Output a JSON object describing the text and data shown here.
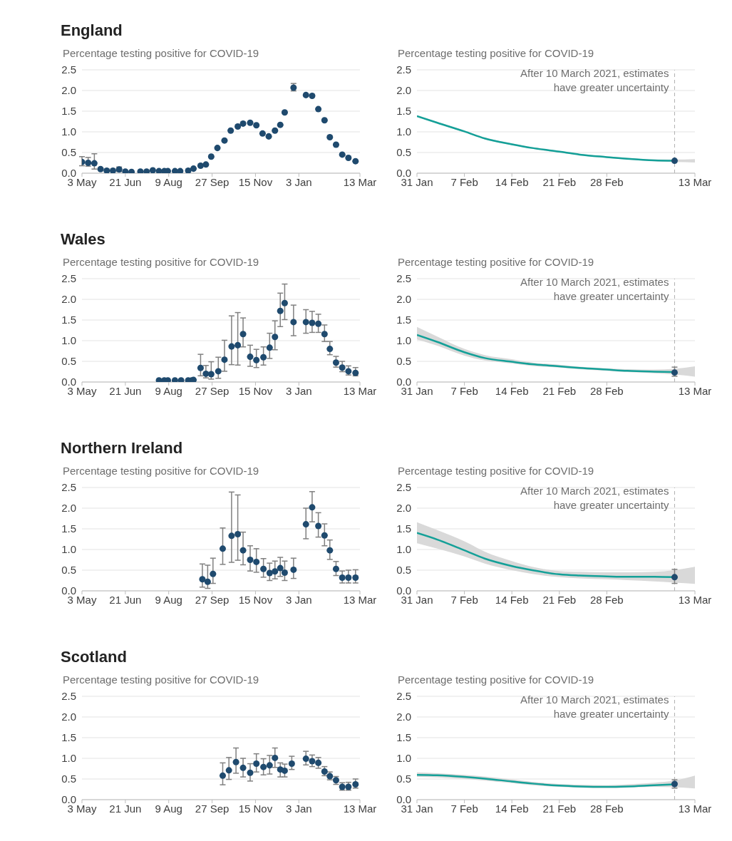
{
  "chart_data": [
    {
      "type": "scatter",
      "title": "England",
      "ylabel": "Percentage testing positive for COVID-19",
      "color": "#1f4a6e",
      "marker": "circle",
      "grid": "y",
      "x": [
        "2020-05-03",
        "2020-05-10",
        "2020-05-17",
        "2020-05-24",
        "2020-05-31",
        "2020-06-07",
        "2020-06-14",
        "2020-06-21",
        "2020-06-28",
        "2020-07-08",
        "2020-07-15",
        "2020-07-22",
        "2020-07-29",
        "2020-08-04",
        "2020-08-08",
        "2020-08-16",
        "2020-08-22",
        "2020-08-31",
        "2020-09-06",
        "2020-09-14",
        "2020-09-20",
        "2020-09-26",
        "2020-10-03",
        "2020-10-11",
        "2020-10-18",
        "2020-10-26",
        "2020-11-01",
        "2020-11-09",
        "2020-11-16",
        "2020-11-23",
        "2020-11-30",
        "2020-12-07",
        "2020-12-13",
        "2020-12-18",
        "2020-12-28",
        "2021-01-11",
        "2021-01-18",
        "2021-01-25",
        "2021-02-01",
        "2021-02-07",
        "2021-02-14",
        "2021-02-21",
        "2021-02-28",
        "2021-03-08"
      ],
      "values": [
        0.27,
        0.25,
        0.24,
        0.1,
        0.06,
        0.06,
        0.09,
        0.04,
        0.03,
        0.04,
        0.04,
        0.07,
        0.05,
        0.05,
        0.05,
        0.05,
        0.05,
        0.06,
        0.11,
        0.18,
        0.21,
        0.4,
        0.61,
        0.79,
        1.03,
        1.13,
        1.2,
        1.22,
        1.16,
        0.96,
        0.89,
        1.03,
        1.17,
        1.47,
        2.07,
        1.89,
        1.87,
        1.55,
        1.28,
        0.87,
        0.69,
        0.45,
        0.37,
        0.29
      ],
      "errors": [
        [
          0.18,
          0.4
        ],
        [
          0.17,
          0.38
        ],
        [
          0.1,
          0.47
        ],
        null,
        null,
        null,
        [
          0.04,
          0.15
        ],
        null,
        null,
        null,
        null,
        null,
        null,
        null,
        null,
        null,
        null,
        null,
        null,
        null,
        null,
        null,
        null,
        null,
        null,
        null,
        null,
        null,
        null,
        null,
        null,
        null,
        null,
        null,
        [
          1.99,
          2.17
        ],
        null,
        null,
        null,
        null,
        null,
        null,
        null,
        null,
        null
      ],
      "xlim": [
        "2020-05-03",
        "2021-03-13"
      ],
      "xticks": [
        {
          "value": "2020-05-03",
          "label": "3 May"
        },
        {
          "value": "2020-06-21",
          "label": "21 Jun"
        },
        {
          "value": "2020-08-09",
          "label": "9 Aug"
        },
        {
          "value": "2020-09-27",
          "label": "27 Sep"
        },
        {
          "value": "2020-11-15",
          "label": "15 Nov"
        },
        {
          "value": "2021-01-03",
          "label": "3 Jan"
        },
        {
          "value": "2021-03-13",
          "label": "13 Mar"
        }
      ],
      "ylim": [
        0,
        2.5
      ],
      "yticks": [
        {
          "value": 0,
          "label": "0.0"
        },
        0.5,
        {
          "value": 1,
          "label": "1.0"
        },
        1.5,
        {
          "value": 2,
          "label": "2.0"
        },
        2.5
      ]
    },
    {
      "type": "line",
      "ylabel": "Percentage testing positive for COVID-19",
      "grid": "y",
      "series": [
        {
          "type": "line",
          "color": "#14a098",
          "x": [
            "2021-01-31",
            "2021-02-03",
            "2021-02-07",
            "2021-02-10",
            "2021-02-14",
            "2021-02-17",
            "2021-02-21",
            "2021-02-24",
            "2021-02-28",
            "2021-03-03",
            "2021-03-07",
            "2021-03-10",
            "2021-03-13"
          ],
          "values": [
            1.38,
            1.22,
            1.01,
            0.84,
            0.7,
            0.61,
            0.52,
            0.45,
            0.39,
            0.35,
            0.31,
            0.3,
            null
          ],
          "lower": [
            1.36,
            1.2,
            0.99,
            0.82,
            0.68,
            0.59,
            0.5,
            0.43,
            0.37,
            0.33,
            0.29,
            0.27,
            0.26
          ],
          "upper": [
            1.4,
            1.24,
            1.03,
            0.86,
            0.72,
            0.63,
            0.54,
            0.47,
            0.41,
            0.37,
            0.33,
            0.33,
            0.34
          ]
        },
        {
          "type": "scatter",
          "color": "#1f4a6e",
          "x": [
            "2021-03-10"
          ],
          "values": [
            0.3
          ]
        }
      ],
      "xlim": [
        "2021-01-31",
        "2021-03-13"
      ],
      "xticks": [
        {
          "value": "2021-01-31",
          "label": "31 Jan"
        },
        {
          "value": "2021-02-07",
          "label": "7 Feb"
        },
        {
          "value": "2021-02-14",
          "label": "14 Feb"
        },
        {
          "value": "2021-02-21",
          "label": "21 Feb"
        },
        {
          "value": "2021-02-28",
          "label": "28 Feb"
        },
        {
          "value": "2021-03-13",
          "label": "13 Mar"
        }
      ],
      "ylim": [
        0,
        2.5
      ],
      "yticks": [
        {
          "value": 0,
          "label": "0.0"
        },
        0.5,
        {
          "value": 1,
          "label": "1.0"
        },
        1.5,
        {
          "value": 2,
          "label": "2.0"
        },
        2.5
      ],
      "ref_lines": [
        {
          "axis": "x",
          "value": "2021-03-10",
          "label": "After 10 March 2021, estimates have greater uncertainty",
          "line_style": "dashed"
        }
      ]
    },
    {
      "type": "scatter",
      "title": "Wales",
      "ylabel": "Percentage testing positive for COVID-19",
      "color": "#1f4a6e",
      "marker": "circle",
      "grid": "y",
      "x": [
        "2020-07-29",
        "2020-08-04",
        "2020-08-08",
        "2020-08-16",
        "2020-08-23",
        "2020-08-31",
        "2020-09-04",
        "2020-09-06",
        "2020-09-14",
        "2020-09-20",
        "2020-09-26",
        "2020-10-04",
        "2020-10-11",
        "2020-10-19",
        "2020-10-26",
        "2020-11-01",
        "2020-11-09",
        "2020-11-16",
        "2020-11-24",
        "2020-12-01",
        "2020-12-07",
        "2020-12-13",
        "2020-12-18",
        "2020-12-28",
        "2021-01-11",
        "2021-01-18",
        "2021-01-25",
        "2021-02-01",
        "2021-02-07",
        "2021-02-14",
        "2021-02-21",
        "2021-02-28",
        "2021-03-08"
      ],
      "values": [
        0.04,
        0.04,
        0.04,
        0.04,
        0.04,
        0.04,
        0.04,
        0.05,
        0.34,
        0.2,
        0.19,
        0.26,
        0.54,
        0.86,
        0.89,
        1.16,
        0.61,
        0.53,
        0.6,
        0.83,
        1.09,
        1.72,
        1.91,
        1.45,
        1.45,
        1.43,
        1.41,
        1.16,
        0.8,
        0.47,
        0.35,
        0.26,
        0.22
      ],
      "errors": [
        null,
        null,
        null,
        null,
        null,
        null,
        null,
        null,
        [
          0.15,
          0.67
        ],
        [
          0.1,
          0.4
        ],
        [
          0.07,
          0.49
        ],
        [
          0.09,
          0.6
        ],
        [
          0.26,
          1.01
        ],
        [
          0.42,
          1.6
        ],
        [
          0.41,
          1.68
        ],
        [
          0.85,
          1.55
        ],
        [
          0.38,
          0.89
        ],
        [
          0.35,
          0.79
        ],
        [
          0.41,
          0.85
        ],
        [
          0.57,
          1.18
        ],
        [
          0.78,
          1.48
        ],
        [
          1.34,
          2.15
        ],
        [
          1.51,
          2.37
        ],
        [
          1.12,
          1.86
        ],
        [
          1.18,
          1.75
        ],
        [
          1.2,
          1.71
        ],
        [
          1.2,
          1.64
        ],
        [
          0.98,
          1.38
        ],
        [
          0.66,
          0.98
        ],
        [
          0.36,
          0.62
        ],
        [
          0.25,
          0.5
        ],
        [
          0.17,
          0.39
        ],
        [
          0.15,
          0.35
        ]
      ],
      "xlim": [
        "2020-05-03",
        "2021-03-13"
      ],
      "xticks": [
        {
          "value": "2020-05-03",
          "label": "3 May"
        },
        {
          "value": "2020-06-21",
          "label": "21 Jun"
        },
        {
          "value": "2020-08-09",
          "label": "9 Aug"
        },
        {
          "value": "2020-09-27",
          "label": "27 Sep"
        },
        {
          "value": "2020-11-15",
          "label": "15 Nov"
        },
        {
          "value": "2021-01-03",
          "label": "3 Jan"
        },
        {
          "value": "2021-03-13",
          "label": "13 Mar"
        }
      ],
      "ylim": [
        0,
        2.5
      ],
      "yticks": [
        {
          "value": 0,
          "label": "0.0"
        },
        0.5,
        {
          "value": 1,
          "label": "1.0"
        },
        1.5,
        {
          "value": 2,
          "label": "2.0"
        },
        2.5
      ]
    },
    {
      "type": "line",
      "ylabel": "Percentage testing positive for COVID-19",
      "grid": "y",
      "series": [
        {
          "type": "line",
          "color": "#14a098",
          "x": [
            "2021-01-31",
            "2021-02-03",
            "2021-02-07",
            "2021-02-10",
            "2021-02-14",
            "2021-02-17",
            "2021-02-21",
            "2021-02-24",
            "2021-02-28",
            "2021-03-03",
            "2021-03-07",
            "2021-03-10",
            "2021-03-13"
          ],
          "values": [
            1.14,
            0.97,
            0.72,
            0.58,
            0.49,
            0.43,
            0.38,
            0.34,
            0.3,
            0.27,
            0.25,
            0.24,
            null
          ],
          "lower": [
            1.03,
            0.88,
            0.64,
            0.52,
            0.45,
            0.39,
            0.35,
            0.31,
            0.27,
            0.24,
            0.21,
            0.18,
            0.13
          ],
          "upper": [
            1.33,
            1.1,
            0.8,
            0.65,
            0.55,
            0.47,
            0.42,
            0.37,
            0.33,
            0.31,
            0.3,
            0.32,
            0.38
          ]
        },
        {
          "type": "scatter",
          "color": "#1f4a6e",
          "x": [
            "2021-03-10"
          ],
          "values": [
            0.23
          ],
          "errors": [
            [
              0.14,
              0.36
            ]
          ]
        }
      ],
      "xlim": [
        "2021-01-31",
        "2021-03-13"
      ],
      "xticks": [
        {
          "value": "2021-01-31",
          "label": "31 Jan"
        },
        {
          "value": "2021-02-07",
          "label": "7 Feb"
        },
        {
          "value": "2021-02-14",
          "label": "14 Feb"
        },
        {
          "value": "2021-02-21",
          "label": "21 Feb"
        },
        {
          "value": "2021-02-28",
          "label": "28 Feb"
        },
        {
          "value": "2021-03-13",
          "label": "13 Mar"
        }
      ],
      "ylim": [
        0,
        2.5
      ],
      "yticks": [
        {
          "value": 0,
          "label": "0.0"
        },
        0.5,
        {
          "value": 1,
          "label": "1.0"
        },
        1.5,
        {
          "value": 2,
          "label": "2.0"
        },
        2.5
      ],
      "ref_lines": [
        {
          "axis": "x",
          "value": "2021-03-10",
          "label": "After 10 March 2021, estimates have greater uncertainty",
          "line_style": "dashed"
        }
      ]
    },
    {
      "type": "scatter",
      "title": "Northern Ireland",
      "ylabel": "Percentage testing positive for COVID-19",
      "color": "#1f4a6e",
      "marker": "circle",
      "grid": "y",
      "x": [
        "2020-09-16",
        "2020-09-22",
        "2020-09-28",
        "2020-10-09",
        "2020-10-19",
        "2020-10-26",
        "2020-11-01",
        "2020-11-09",
        "2020-11-16",
        "2020-11-24",
        "2020-12-01",
        "2020-12-07",
        "2020-12-13",
        "2020-12-18",
        "2020-12-28",
        "2021-01-11",
        "2021-01-18",
        "2021-01-25",
        "2021-02-01",
        "2021-02-07",
        "2021-02-14",
        "2021-02-21",
        "2021-02-28",
        "2021-03-08"
      ],
      "values": [
        0.28,
        0.22,
        0.41,
        1.02,
        1.33,
        1.37,
        0.98,
        0.75,
        0.7,
        0.53,
        0.43,
        0.47,
        0.55,
        0.44,
        0.51,
        1.61,
        2.02,
        1.57,
        1.34,
        0.98,
        0.53,
        0.32,
        0.32,
        0.32
      ],
      "errors": [
        [
          0.09,
          0.65
        ],
        [
          0.06,
          0.62
        ],
        [
          0.18,
          0.79
        ],
        [
          0.64,
          1.52
        ],
        [
          0.69,
          2.39
        ],
        [
          0.74,
          2.32
        ],
        [
          0.63,
          1.42
        ],
        [
          0.48,
          1.09
        ],
        [
          0.45,
          1.02
        ],
        [
          0.33,
          0.78
        ],
        [
          0.25,
          0.67
        ],
        [
          0.29,
          0.72
        ],
        [
          0.35,
          0.81
        ],
        [
          0.25,
          0.72
        ],
        [
          0.3,
          0.79
        ],
        [
          1.26,
          2.0
        ],
        [
          1.67,
          2.4
        ],
        [
          1.3,
          1.89
        ],
        [
          1.09,
          1.62
        ],
        [
          0.76,
          1.23
        ],
        [
          0.37,
          0.71
        ],
        [
          0.19,
          0.48
        ],
        [
          0.19,
          0.5
        ],
        [
          0.19,
          0.51
        ]
      ],
      "xlim": [
        "2020-05-03",
        "2021-03-13"
      ],
      "xticks": [
        {
          "value": "2020-05-03",
          "label": "3 May"
        },
        {
          "value": "2020-06-21",
          "label": "21 Jun"
        },
        {
          "value": "2020-08-09",
          "label": "9 Aug"
        },
        {
          "value": "2020-09-27",
          "label": "27 Sep"
        },
        {
          "value": "2020-11-15",
          "label": "15 Nov"
        },
        {
          "value": "2021-01-03",
          "label": "3 Jan"
        },
        {
          "value": "2021-03-13",
          "label": "13 Mar"
        }
      ],
      "ylim": [
        0,
        2.5
      ],
      "yticks": [
        {
          "value": 0,
          "label": "0.0"
        },
        0.5,
        {
          "value": 1,
          "label": "1.0"
        },
        1.5,
        {
          "value": 2,
          "label": "2.0"
        },
        2.5
      ]
    },
    {
      "type": "line",
      "ylabel": "Percentage testing positive for COVID-19",
      "grid": "y",
      "series": [
        {
          "type": "line",
          "color": "#14a098",
          "x": [
            "2021-01-31",
            "2021-02-03",
            "2021-02-07",
            "2021-02-10",
            "2021-02-14",
            "2021-02-17",
            "2021-02-21",
            "2021-02-24",
            "2021-02-28",
            "2021-03-03",
            "2021-03-07",
            "2021-03-10",
            "2021-03-13"
          ],
          "values": [
            1.4,
            1.24,
            0.98,
            0.78,
            0.6,
            0.5,
            0.4,
            0.37,
            0.35,
            0.34,
            0.34,
            0.33,
            null
          ],
          "lower": [
            1.15,
            1.02,
            0.83,
            0.66,
            0.5,
            0.41,
            0.33,
            0.3,
            0.28,
            0.26,
            0.23,
            0.2,
            0.17
          ],
          "upper": [
            1.66,
            1.47,
            1.2,
            0.95,
            0.72,
            0.58,
            0.48,
            0.46,
            0.45,
            0.45,
            0.46,
            0.5,
            0.58
          ]
        },
        {
          "type": "scatter",
          "color": "#1f4a6e",
          "x": [
            "2021-03-10"
          ],
          "values": [
            0.33
          ],
          "errors": [
            [
              0.18,
              0.52
            ]
          ]
        }
      ],
      "xlim": [
        "2021-01-31",
        "2021-03-13"
      ],
      "xticks": [
        {
          "value": "2021-01-31",
          "label": "31 Jan"
        },
        {
          "value": "2021-02-07",
          "label": "7 Feb"
        },
        {
          "value": "2021-02-14",
          "label": "14 Feb"
        },
        {
          "value": "2021-02-21",
          "label": "21 Feb"
        },
        {
          "value": "2021-02-28",
          "label": "28 Feb"
        },
        {
          "value": "2021-03-13",
          "label": "13 Mar"
        }
      ],
      "ylim": [
        0,
        2.5
      ],
      "yticks": [
        {
          "value": 0,
          "label": "0.0"
        },
        0.5,
        {
          "value": 1,
          "label": "1.0"
        },
        1.5,
        {
          "value": 2,
          "label": "2.0"
        },
        2.5
      ],
      "ref_lines": [
        {
          "axis": "x",
          "value": "2021-03-10",
          "label": "After 10 March 2021, estimates have greater uncertainty",
          "line_style": "dashed"
        }
      ]
    },
    {
      "type": "scatter",
      "title": "Scotland",
      "ylabel": "Percentage testing positive for COVID-19",
      "color": "#1f4a6e",
      "marker": "circle",
      "grid": "y",
      "x": [
        "2020-10-09",
        "2020-10-16",
        "2020-10-24",
        "2020-11-01",
        "2020-11-09",
        "2020-11-16",
        "2020-11-24",
        "2020-12-01",
        "2020-12-07",
        "2020-12-13",
        "2020-12-18",
        "2020-12-26",
        "2021-01-11",
        "2021-01-18",
        "2021-01-25",
        "2021-02-01",
        "2021-02-07",
        "2021-02-14",
        "2021-02-21",
        "2021-02-28",
        "2021-03-08"
      ],
      "values": [
        0.58,
        0.71,
        0.91,
        0.77,
        0.65,
        0.87,
        0.79,
        0.83,
        1.01,
        0.73,
        0.7,
        0.87,
        0.99,
        0.93,
        0.89,
        0.68,
        0.57,
        0.47,
        0.31,
        0.31,
        0.37
      ],
      "errors": [
        [
          0.36,
          0.89
        ],
        [
          0.49,
          1.02
        ],
        [
          0.64,
          1.25
        ],
        [
          0.55,
          1.0
        ],
        [
          0.45,
          0.87
        ],
        [
          0.67,
          1.11
        ],
        [
          0.6,
          0.99
        ],
        [
          0.62,
          1.07
        ],
        [
          0.78,
          1.25
        ],
        [
          0.55,
          0.89
        ],
        [
          0.55,
          0.86
        ],
        [
          0.73,
          1.05
        ],
        [
          0.84,
          1.17
        ],
        [
          0.8,
          1.08
        ],
        [
          0.76,
          1.02
        ],
        [
          0.58,
          0.8
        ],
        [
          0.48,
          0.67
        ],
        [
          0.37,
          0.56
        ],
        [
          0.23,
          0.41
        ],
        [
          0.23,
          0.42
        ],
        [
          0.28,
          0.5
        ]
      ],
      "xlim": [
        "2020-05-03",
        "2021-03-13"
      ],
      "xticks": [
        {
          "value": "2020-05-03",
          "label": "3 May"
        },
        {
          "value": "2020-06-21",
          "label": "21 Jun"
        },
        {
          "value": "2020-08-09",
          "label": "9 Aug"
        },
        {
          "value": "2020-09-27",
          "label": "27 Sep"
        },
        {
          "value": "2020-11-15",
          "label": "15 Nov"
        },
        {
          "value": "2021-01-03",
          "label": "3 Jan"
        },
        {
          "value": "2021-03-13",
          "label": "13 Mar"
        }
      ],
      "ylim": [
        0,
        2.5
      ],
      "yticks": [
        {
          "value": 0,
          "label": "0.0"
        },
        0.5,
        {
          "value": 1,
          "label": "1.0"
        },
        1.5,
        {
          "value": 2,
          "label": "2.0"
        },
        2.5
      ]
    },
    {
      "type": "line",
      "ylabel": "Percentage testing positive for COVID-19",
      "grid": "y",
      "series": [
        {
          "type": "line",
          "color": "#14a098",
          "x": [
            "2021-01-31",
            "2021-02-03",
            "2021-02-07",
            "2021-02-10",
            "2021-02-14",
            "2021-02-17",
            "2021-02-21",
            "2021-02-24",
            "2021-02-28",
            "2021-03-03",
            "2021-03-07",
            "2021-03-10",
            "2021-03-13"
          ],
          "values": [
            0.6,
            0.59,
            0.55,
            0.51,
            0.44,
            0.39,
            0.34,
            0.32,
            0.31,
            0.32,
            0.35,
            0.37,
            null
          ],
          "lower": [
            0.55,
            0.54,
            0.5,
            0.46,
            0.4,
            0.35,
            0.31,
            0.29,
            0.28,
            0.29,
            0.31,
            0.3,
            0.27
          ],
          "upper": [
            0.66,
            0.64,
            0.6,
            0.56,
            0.49,
            0.43,
            0.38,
            0.36,
            0.35,
            0.37,
            0.41,
            0.46,
            0.58
          ]
        },
        {
          "type": "scatter",
          "color": "#1f4a6e",
          "x": [
            "2021-03-10"
          ],
          "values": [
            0.38
          ],
          "errors": [
            [
              0.28,
              0.48
            ]
          ]
        }
      ],
      "xlim": [
        "2021-01-31",
        "2021-03-13"
      ],
      "xticks": [
        {
          "value": "2021-01-31",
          "label": "31 Jan"
        },
        {
          "value": "2021-02-07",
          "label": "7 Feb"
        },
        {
          "value": "2021-02-14",
          "label": "14 Feb"
        },
        {
          "value": "2021-02-21",
          "label": "21 Feb"
        },
        {
          "value": "2021-02-28",
          "label": "28 Feb"
        },
        {
          "value": "2021-03-13",
          "label": "13 Mar"
        }
      ],
      "ylim": [
        0,
        2.5
      ],
      "yticks": [
        {
          "value": 0,
          "label": "0.0"
        },
        0.5,
        {
          "value": 1,
          "label": "1.0"
        },
        1.5,
        {
          "value": 2,
          "label": "2.0"
        },
        2.5
      ],
      "ref_lines": [
        {
          "axis": "x",
          "value": "2021-03-10",
          "label": "After 10 March 2021, estimates have greater uncertainty",
          "line_style": "dashed"
        }
      ]
    }
  ]
}
